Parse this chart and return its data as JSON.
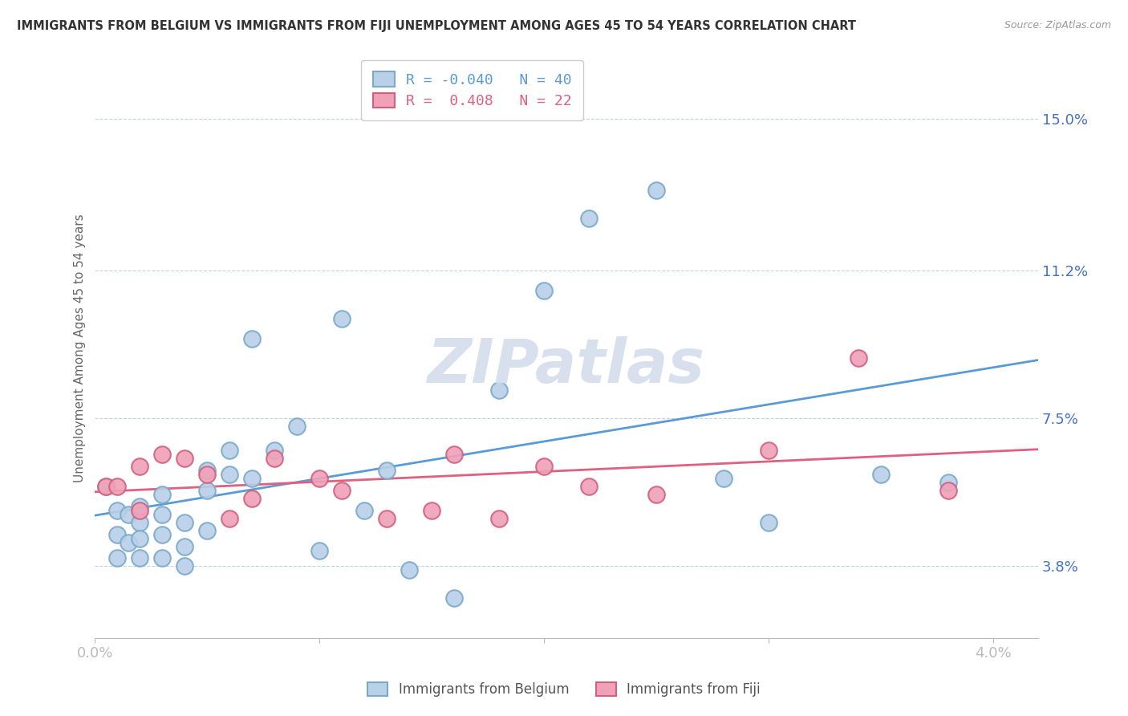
{
  "title": "IMMIGRANTS FROM BELGIUM VS IMMIGRANTS FROM FIJI UNEMPLOYMENT AMONG AGES 45 TO 54 YEARS CORRELATION CHART",
  "source": "Source: ZipAtlas.com",
  "ylabel": "Unemployment Among Ages 45 to 54 years",
  "r_belgium": -0.04,
  "n_belgium": 40,
  "r_fiji": 0.408,
  "n_fiji": 22,
  "color_belgium": "#b8d0e8",
  "color_belgium_edge": "#7aaac8",
  "color_fiji": "#f0a0b8",
  "color_fiji_edge": "#d06080",
  "color_line_belgium": "#5b9bd5",
  "color_line_fiji": "#e06080",
  "yticks": [
    0.038,
    0.075,
    0.112,
    0.15
  ],
  "ytick_labels": [
    "3.8%",
    "7.5%",
    "11.2%",
    "15.0%"
  ],
  "xticks": [
    0.0,
    0.01,
    0.02,
    0.03,
    0.04
  ],
  "xtick_labels": [
    "0.0%",
    "",
    "",
    "",
    "4.0%"
  ],
  "ylim": [
    0.02,
    0.165
  ],
  "xlim": [
    0.0,
    0.042
  ],
  "watermark": "ZIPatlas",
  "watermark_color": "#d8e0ee",
  "legend_label_belgium": "Immigrants from Belgium",
  "legend_label_fiji": "Immigrants from Fiji",
  "background_color": "#ffffff",
  "grid_color": "#c8d0e0",
  "belgium_x": [
    0.0005,
    0.001,
    0.001,
    0.001,
    0.0015,
    0.0015,
    0.002,
    0.002,
    0.002,
    0.002,
    0.003,
    0.003,
    0.003,
    0.003,
    0.004,
    0.004,
    0.004,
    0.005,
    0.005,
    0.005,
    0.006,
    0.006,
    0.007,
    0.007,
    0.008,
    0.009,
    0.01,
    0.011,
    0.012,
    0.013,
    0.014,
    0.016,
    0.018,
    0.02,
    0.022,
    0.025,
    0.028,
    0.03,
    0.035,
    0.038
  ],
  "belgium_y": [
    0.058,
    0.052,
    0.046,
    0.04,
    0.051,
    0.044,
    0.053,
    0.049,
    0.045,
    0.04,
    0.056,
    0.051,
    0.046,
    0.04,
    0.049,
    0.043,
    0.038,
    0.062,
    0.057,
    0.047,
    0.067,
    0.061,
    0.06,
    0.095,
    0.067,
    0.073,
    0.042,
    0.1,
    0.052,
    0.062,
    0.037,
    0.03,
    0.082,
    0.107,
    0.125,
    0.132,
    0.06,
    0.049,
    0.061,
    0.059
  ],
  "fiji_x": [
    0.0005,
    0.001,
    0.002,
    0.002,
    0.003,
    0.004,
    0.005,
    0.006,
    0.007,
    0.008,
    0.01,
    0.011,
    0.013,
    0.015,
    0.016,
    0.018,
    0.02,
    0.022,
    0.025,
    0.03,
    0.034,
    0.038
  ],
  "fiji_y": [
    0.058,
    0.058,
    0.063,
    0.052,
    0.066,
    0.065,
    0.061,
    0.05,
    0.055,
    0.065,
    0.06,
    0.057,
    0.05,
    0.052,
    0.066,
    0.05,
    0.063,
    0.058,
    0.056,
    0.067,
    0.09,
    0.057
  ]
}
